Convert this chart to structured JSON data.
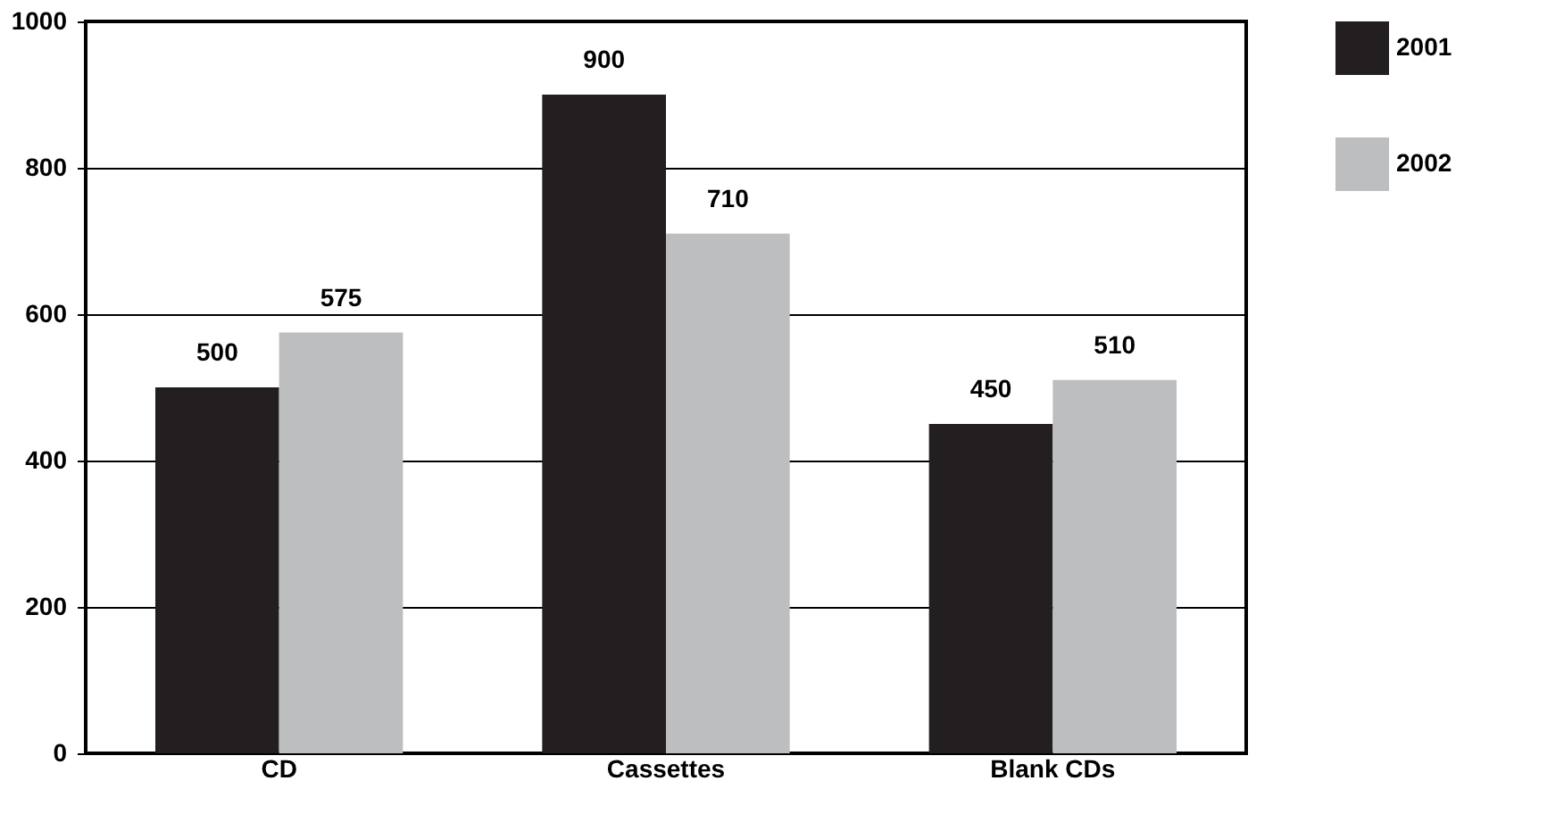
{
  "chart_data": {
    "type": "bar",
    "categories": [
      "CD",
      "Cassettes",
      "Blank CDs"
    ],
    "series": [
      {
        "name": "2001",
        "color": "#231f20",
        "values": [
          500,
          900,
          450
        ]
      },
      {
        "name": "2002",
        "color": "#bcbec0",
        "values": [
          575,
          710,
          510
        ]
      }
    ],
    "ylim": [
      0,
      1000
    ],
    "yticks": [
      0,
      200,
      400,
      600,
      800,
      1000
    ],
    "grid": "y",
    "legend": "right",
    "data_labels": true
  }
}
